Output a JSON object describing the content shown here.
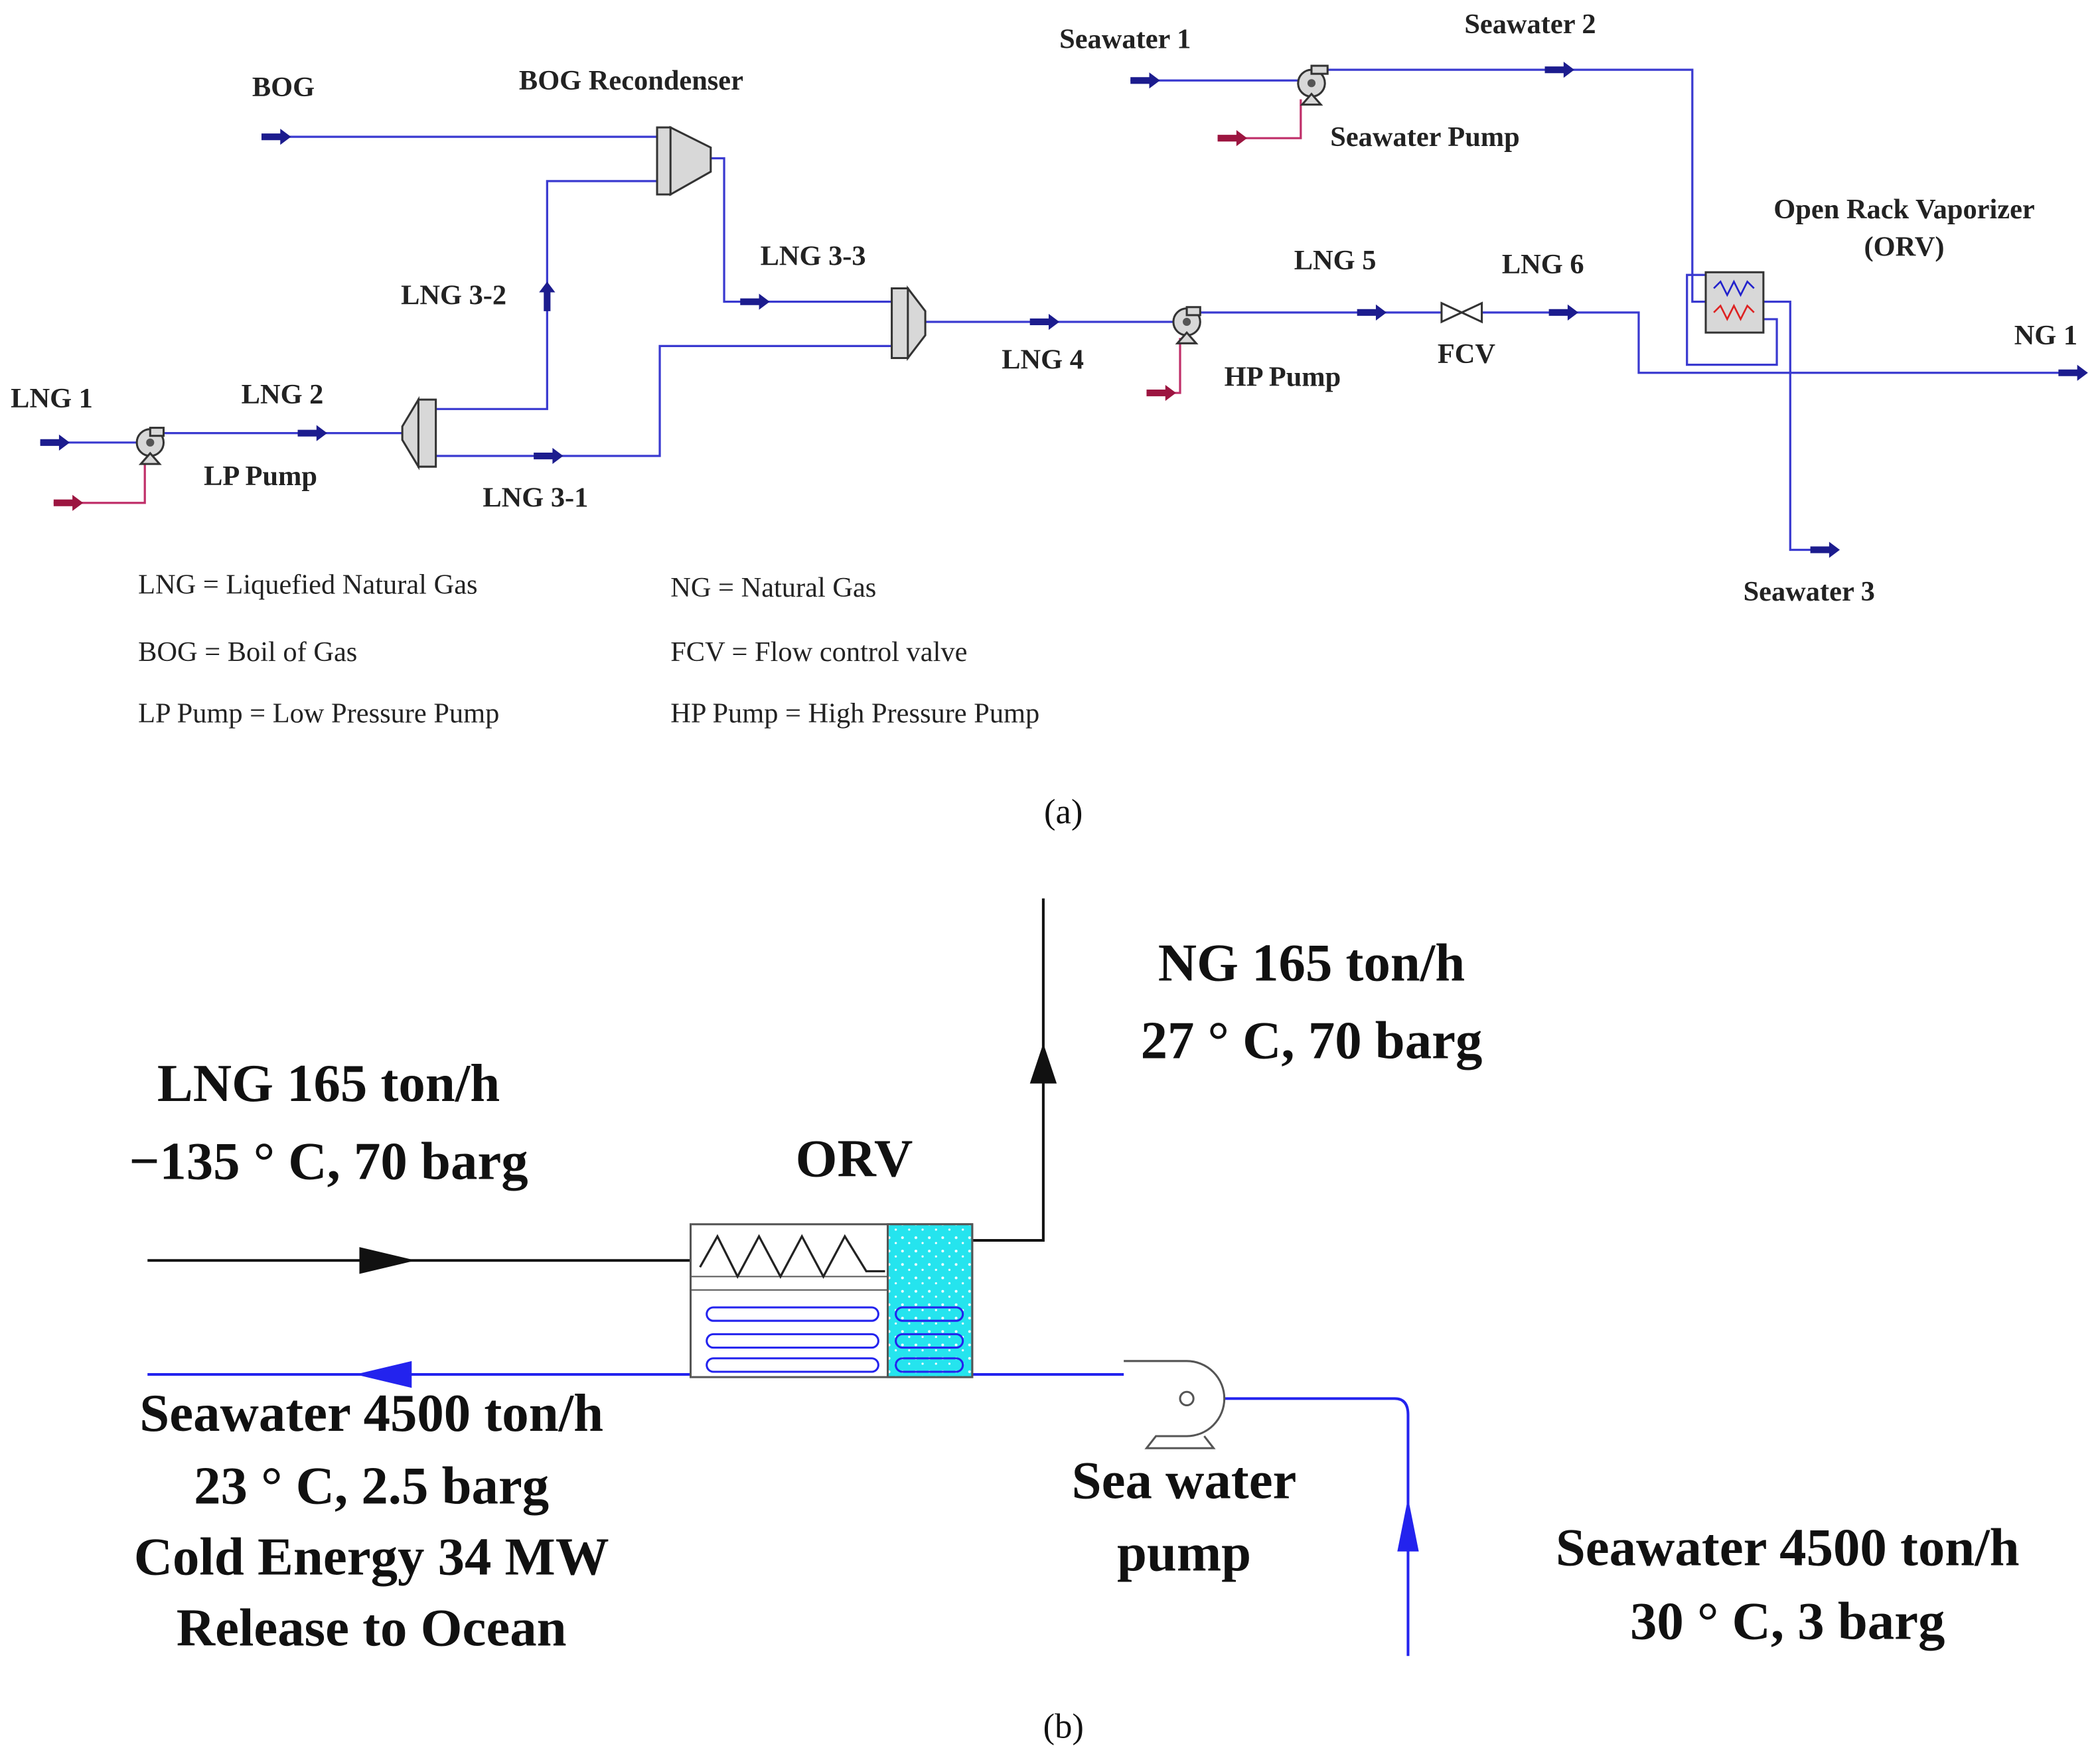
{
  "panel_a": {
    "streams": {
      "bog": "BOG",
      "bog_recondenser": "BOG Recondenser",
      "seawater_1": "Seawater 1",
      "seawater_2": "Seawater 2",
      "seawater_pump": "Seawater Pump",
      "orv_name": "Open Rack Vaporizer",
      "orv_abbr": "(ORV)",
      "lng_3_3": "LNG 3-3",
      "lng_5": "LNG 5",
      "lng_6": "LNG 6",
      "ng_1": "NG 1",
      "lng_3_2": "LNG 3-2",
      "lng_1": "LNG 1",
      "lng_2": "LNG 2",
      "lp_pump": "LP Pump",
      "lng_3_1": "LNG 3-1",
      "lng_4": "LNG 4",
      "hp_pump": "HP Pump",
      "fcv": "FCV",
      "seawater_3": "Seawater 3"
    },
    "legend": [
      "LNG = Liquefied Natural Gas",
      "NG = Natural Gas",
      "BOG = Boil of Gas",
      "FCV = Flow control valve",
      "LP Pump = Low Pressure Pump",
      "HP Pump = High Pressure Pump"
    ],
    "caption": "(a)"
  },
  "panel_b": {
    "ng_outlet": [
      "NG 165 ton/h",
      "27 ° C, 70 barg"
    ],
    "lng_inlet": [
      "LNG 165 ton/h",
      "−135 ° C, 70 barg"
    ],
    "orv": "ORV",
    "seawater_outlet": [
      "Seawater 4500 ton/h",
      "23 ° C, 2.5 barg",
      "Cold Energy 34 MW",
      "Release to Ocean"
    ],
    "pump": [
      "Sea water",
      "pump"
    ],
    "seawater_inlet": [
      "Seawater 4500 ton/h",
      "30 ° C, 3 barg"
    ],
    "caption": "(b)"
  }
}
